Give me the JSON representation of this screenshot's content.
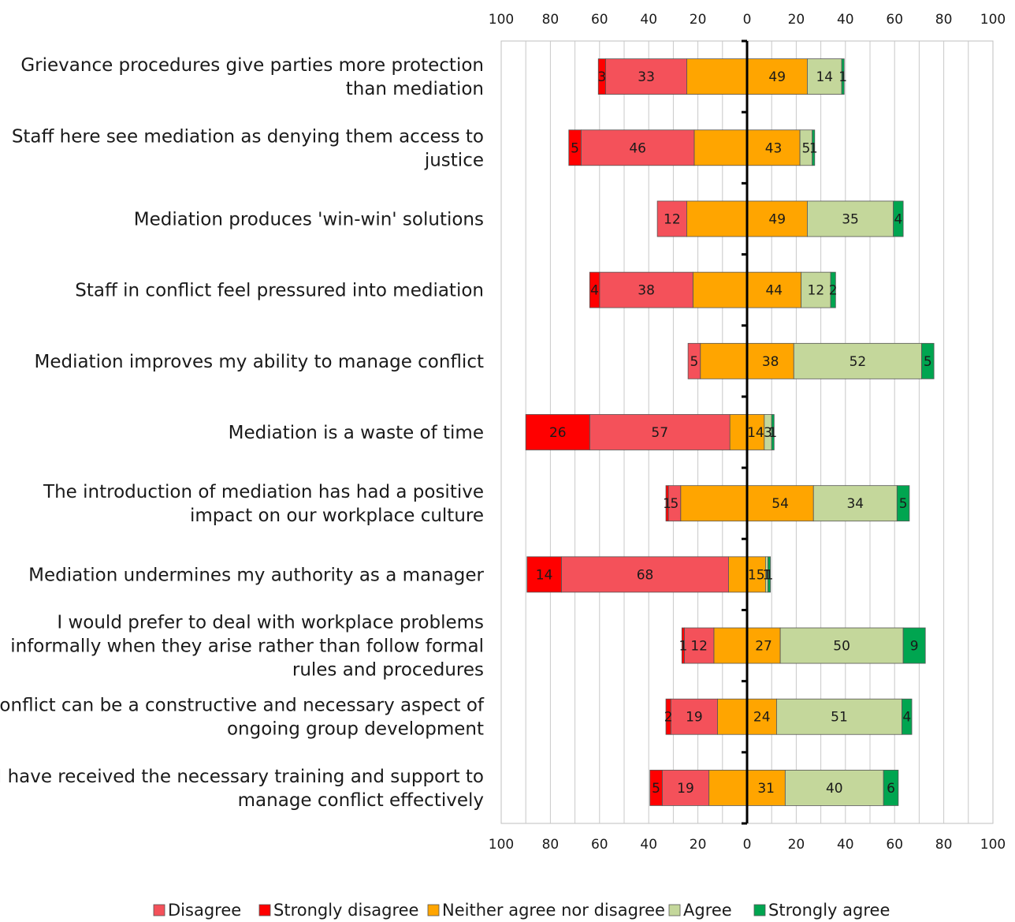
{
  "chart_data": {
    "type": "bar",
    "orientation": "horizontal",
    "stacked": "diverging",
    "xlim": [
      -100,
      100
    ],
    "x_ticks": [
      100,
      80,
      60,
      40,
      20,
      0,
      20,
      40,
      60,
      80,
      100
    ],
    "grid": true,
    "legend_position": "bottom",
    "categories": [
      [
        "Grievance procedures give parties more protection",
        "than mediation"
      ],
      [
        "Staff here see mediation as denying them access to",
        "justice"
      ],
      [
        "Mediation produces 'win-win' solutions"
      ],
      [
        "Staff in conflict feel pressured into mediation"
      ],
      [
        "Mediation improves my ability to manage conflict"
      ],
      [
        "Mediation is a waste of time"
      ],
      [
        "The introduction of mediation has had a positive",
        "impact on our workplace culture"
      ],
      [
        "Mediation undermines my authority as a manager"
      ],
      [
        "I would prefer to deal with workplace problems",
        "informally when they arise rather than follow formal",
        "rules and procedures"
      ],
      [
        "Conflict can be a constructive and necessary aspect of",
        "ongoing group development"
      ],
      [
        "I have received the necessary training and support to",
        "manage conflict effectively"
      ]
    ],
    "series": [
      {
        "name": "Strongly disagree",
        "color": "#ff0000",
        "side": "negative",
        "values": [
          3,
          5,
          0,
          4,
          0,
          26,
          1,
          14,
          1,
          2,
          5
        ]
      },
      {
        "name": "Disagree",
        "color": "#f4515a",
        "side": "negative",
        "values": [
          33,
          46,
          12,
          38,
          5,
          57,
          5,
          68,
          12,
          19,
          19
        ]
      },
      {
        "name": "Neither agree nor disagree",
        "color": "#ffa500",
        "side": "split",
        "values": [
          49,
          43,
          49,
          44,
          38,
          14,
          54,
          15,
          27,
          24,
          31
        ]
      },
      {
        "name": "Agree",
        "color": "#c4d79b",
        "side": "positive",
        "values": [
          14,
          5,
          35,
          12,
          52,
          3,
          34,
          1,
          50,
          51,
          40
        ]
      },
      {
        "name": "Strongly agree",
        "color": "#00a550",
        "side": "positive",
        "values": [
          1,
          1,
          4,
          2,
          5,
          1,
          5,
          1,
          9,
          4,
          6
        ]
      }
    ],
    "legend_order": [
      "Disagree",
      "Strongly disagree",
      "Neither agree nor disagree",
      "Agree",
      "Strongly agree"
    ]
  }
}
